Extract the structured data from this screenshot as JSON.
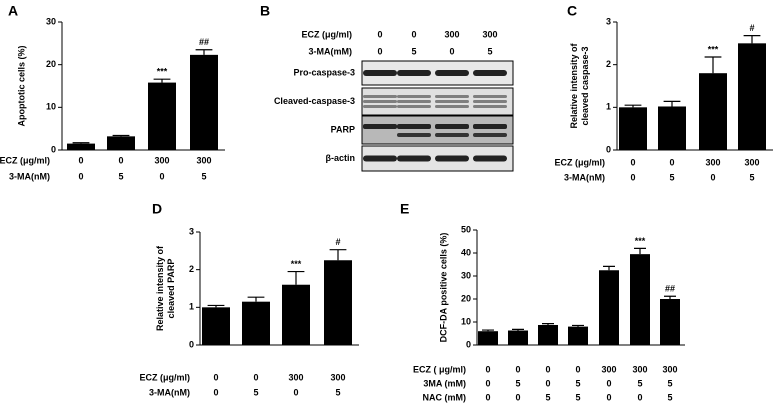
{
  "chart_data": [
    {
      "type": "bar",
      "panel": "A",
      "ylabel": [
        "Apoptotic cells (%)"
      ],
      "ylim": [
        0,
        30
      ],
      "yticks": [
        0,
        10,
        20,
        30
      ],
      "color": "#000000",
      "values": [
        1.5,
        3.2,
        15.8,
        22.3
      ],
      "errors": [
        0.2,
        0.2,
        0.8,
        1.2
      ],
      "annotations": [
        null,
        null,
        "***",
        "##"
      ],
      "x_table": {
        "labels": [
          "ECZ (μg/ml)",
          "3-MA(nM)"
        ],
        "rows": [
          [
            0,
            0,
            300,
            300
          ],
          [
            0,
            5,
            0,
            5
          ]
        ]
      }
    },
    {
      "type": "bar",
      "panel": "C",
      "ylabel": [
        "Relative intensity of",
        "cleaved caspase-3"
      ],
      "ylim": [
        0,
        3
      ],
      "yticks": [
        0,
        1,
        2,
        3
      ],
      "color": "#000000",
      "values": [
        1.0,
        1.02,
        1.8,
        2.5
      ],
      "errors": [
        0.05,
        0.12,
        0.38,
        0.18
      ],
      "annotations": [
        null,
        null,
        "***",
        "#"
      ],
      "x_table": {
        "labels": [
          "ECZ (μg/ml)",
          "3-MA(nM)"
        ],
        "rows": [
          [
            0,
            0,
            300,
            300
          ],
          [
            0,
            5,
            0,
            5
          ]
        ]
      }
    },
    {
      "type": "bar",
      "panel": "D",
      "ylabel": [
        "Relative intensity of",
        "cleaved PARP"
      ],
      "ylim": [
        0,
        3
      ],
      "yticks": [
        0,
        1,
        2,
        3
      ],
      "color": "#000000",
      "values": [
        1.0,
        1.15,
        1.6,
        2.25
      ],
      "errors": [
        0.05,
        0.12,
        0.35,
        0.28
      ],
      "annotations": [
        null,
        null,
        "***",
        "#"
      ],
      "x_table": {
        "labels": [
          "ECZ (μg/ml)",
          "3-MA(nM)"
        ],
        "rows": [
          [
            0,
            0,
            300,
            300
          ],
          [
            0,
            5,
            0,
            5
          ]
        ]
      }
    },
    {
      "type": "bar",
      "panel": "E",
      "ylabel": [
        "DCF-DA positive cells (%)"
      ],
      "ylim": [
        0,
        50
      ],
      "yticks": [
        0,
        10,
        20,
        30,
        40,
        50
      ],
      "color": "#000000",
      "values": [
        6,
        6.3,
        8.7,
        8,
        32.5,
        39.5,
        20
      ],
      "errors": [
        0.5,
        0.5,
        0.6,
        0.5,
        1.7,
        2.5,
        1.2
      ],
      "annotations": [
        null,
        null,
        null,
        null,
        null,
        "***",
        "##"
      ],
      "x_table": {
        "labels": [
          "ECZ ( μg/ml)",
          "3MA (mM)",
          "NAC (mM)"
        ],
        "rows": [
          [
            0,
            0,
            0,
            0,
            300,
            300,
            300
          ],
          [
            0,
            5,
            0,
            5,
            0,
            5,
            5
          ],
          [
            0,
            0,
            5,
            5,
            0,
            0,
            5
          ]
        ]
      }
    }
  ],
  "blot": {
    "panel": "B",
    "conditions": {
      "labels": [
        "ECZ (μg/ml)",
        "3-MA(mM)"
      ],
      "rows": [
        [
          0,
          0,
          300,
          300
        ],
        [
          0,
          5,
          0,
          5
        ]
      ]
    },
    "bands": [
      "Pro-caspase-3",
      "Cleaved-caspase-3",
      "PARP",
      "β-actin"
    ]
  }
}
